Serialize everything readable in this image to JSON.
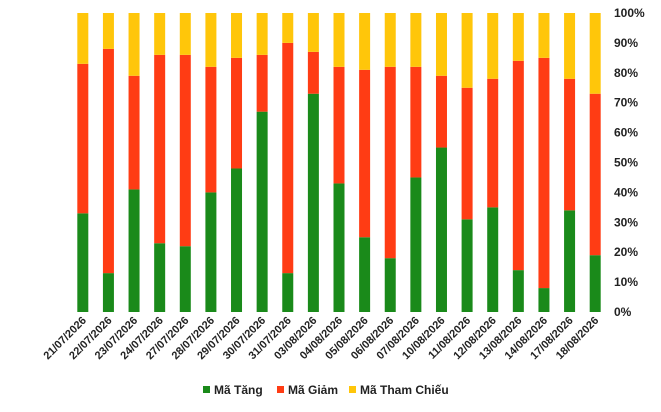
{
  "chart_data": {
    "type": "bar",
    "stacked": true,
    "normalized": true,
    "title": "",
    "xlabel": "",
    "ylabel": "",
    "ylim": [
      0,
      100
    ],
    "y_ticks": [
      "0%",
      "10%",
      "20%",
      "30%",
      "40%",
      "50%",
      "60%",
      "70%",
      "80%",
      "90%",
      "100%"
    ],
    "y_axis_position": "right",
    "grid": false,
    "legend_position": "bottom",
    "categories": [
      "21/07/2026",
      "22/07/2026",
      "23/07/2026",
      "24/07/2026",
      "27/07/2026",
      "28/07/2026",
      "29/07/2026",
      "30/07/2026",
      "31/07/2026",
      "03/08/2026",
      "04/08/2026",
      "05/08/2026",
      "06/08/2026",
      "07/08/2026",
      "10/08/2026",
      "11/08/2026",
      "12/08/2026",
      "13/08/2026",
      "14/08/2026",
      "17/08/2026",
      "18/08/2026"
    ],
    "series": [
      {
        "name": "Mã Tăng",
        "color": "#1a8a1a",
        "values": [
          33,
          13,
          41,
          23,
          22,
          40,
          48,
          67,
          13,
          73,
          43,
          25,
          18,
          45,
          55,
          31,
          35,
          14,
          8,
          34,
          19
        ]
      },
      {
        "name": "Mã Giảm",
        "color": "#ff3c14",
        "values": [
          50,
          75,
          38,
          63,
          64,
          42,
          37,
          19,
          77,
          14,
          39,
          56,
          64,
          37,
          24,
          44,
          43,
          70,
          77,
          44,
          54
        ]
      },
      {
        "name": "Mã Tham Chiếu",
        "color": "#ffc60a",
        "values": [
          17,
          12,
          21,
          14,
          14,
          18,
          15,
          14,
          10,
          13,
          18,
          19,
          18,
          18,
          21,
          25,
          22,
          16,
          15,
          22,
          27
        ]
      }
    ]
  }
}
